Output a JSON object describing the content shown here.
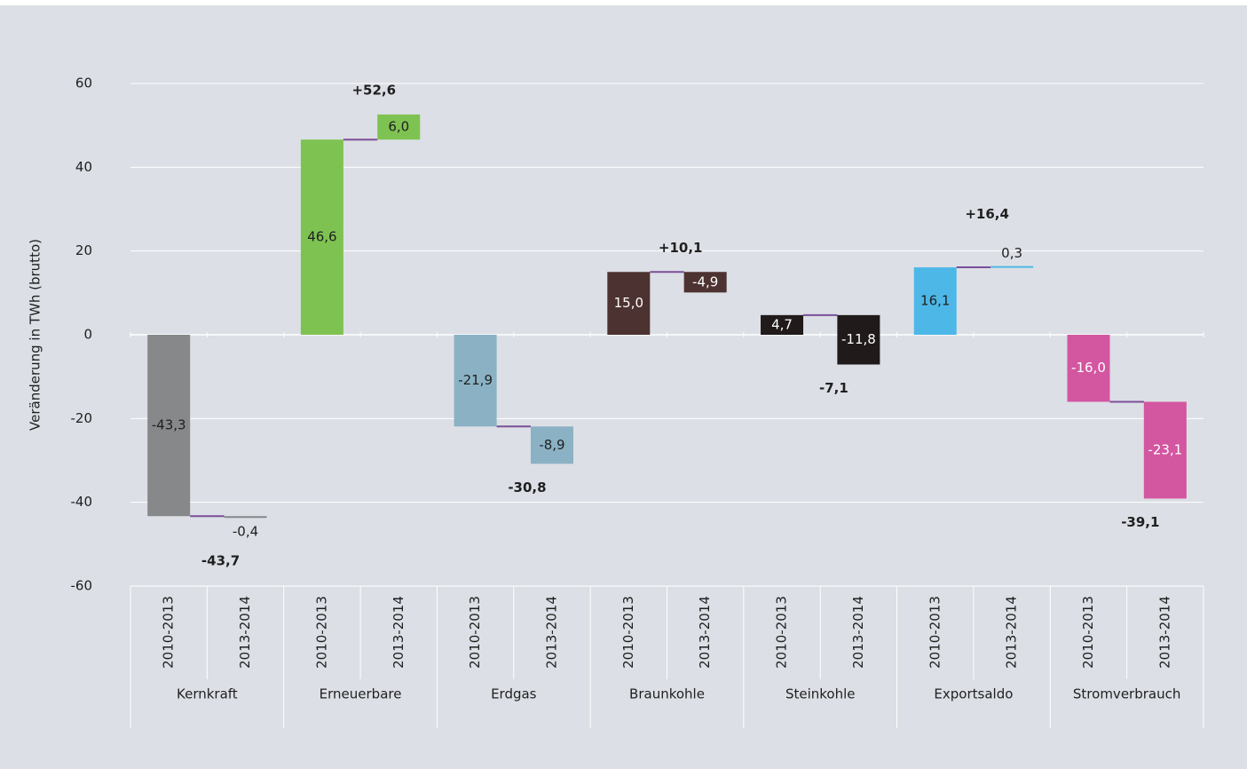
{
  "chart_data": {
    "type": "waterfall",
    "y_label": "Veränderung in TWh (brutto)",
    "ylim": [
      -60,
      60
    ],
    "yticks": [
      60,
      40,
      20,
      0,
      -20,
      -40,
      -60
    ],
    "grid": true,
    "periods": [
      "2010-2013",
      "2013-2014"
    ],
    "connector_color": "#7b4e9a",
    "groups": [
      {
        "name": "Kernkraft",
        "color": "#87888a",
        "label_color": "#1f1f1f",
        "values": [
          -43.3,
          -0.4
        ],
        "value_labels": [
          "-43,3",
          "-0,4"
        ],
        "total": -43.7,
        "total_label": "-43,7"
      },
      {
        "name": "Erneuerbare",
        "color": "#7ec352",
        "label_color": "#1f1f1f",
        "values": [
          46.6,
          6.0
        ],
        "value_labels": [
          "46,6",
          "6,0"
        ],
        "total": 52.6,
        "total_label": "+52,6"
      },
      {
        "name": "Erdgas",
        "color": "#8ab2c4",
        "label_color": "#1f1f1f",
        "values": [
          -21.9,
          -8.9
        ],
        "value_labels": [
          "-21,9",
          "-8,9"
        ],
        "total": -30.8,
        "total_label": "-30,8"
      },
      {
        "name": "Braunkohle",
        "color": "#4c3230",
        "label_color": "#ffffff",
        "values": [
          15.0,
          -4.9
        ],
        "value_labels": [
          "15,0",
          "-4,9"
        ],
        "total": 10.1,
        "total_label": "+10,1"
      },
      {
        "name": "Steinkohle",
        "color": "#201a1a",
        "label_color": "#ffffff",
        "values": [
          4.7,
          -11.8
        ],
        "value_labels": [
          "4,7",
          "-11,8"
        ],
        "total": -7.1,
        "total_label": "-7,1"
      },
      {
        "name": "Exportsaldo",
        "color": "#4db8e8",
        "label_color": "#1f1f1f",
        "values": [
          16.1,
          0.3
        ],
        "value_labels": [
          "16,1",
          "0,3"
        ],
        "total": 16.4,
        "total_label": "+16,4"
      },
      {
        "name": "Stromverbrauch",
        "color": "#d356a0",
        "label_color": "#ffffff",
        "values": [
          -16.0,
          -23.1
        ],
        "value_labels": [
          "-16,0",
          "-23,1"
        ],
        "total": -39.1,
        "total_label": "-39,1"
      }
    ]
  }
}
